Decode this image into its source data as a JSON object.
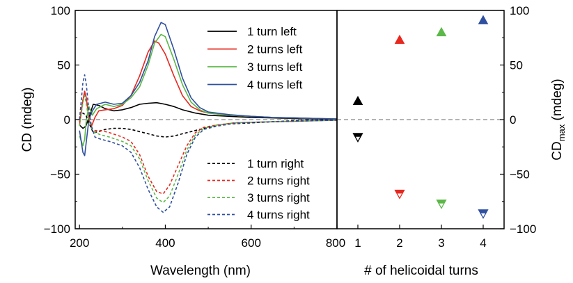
{
  "chart_data": [
    {
      "type": "line",
      "xlabel": "Wavelength (nm)",
      "ylabel": "CD (mdeg)",
      "xlim": [
        190,
        800
      ],
      "ylim": [
        -100,
        100
      ],
      "xticks": [
        "200",
        "400",
        "600",
        "800"
      ],
      "yticks": [
        "100",
        "50",
        "0",
        "−50",
        "−100"
      ],
      "reference_line": {
        "y": 0,
        "style": "dashed",
        "color": "#888888"
      },
      "legend_placement": "top-right and bottom-right",
      "series": [
        {
          "name": "1 turn left",
          "color": "#000000",
          "style": "solid",
          "points": [
            [
              200,
              -5
            ],
            [
              208,
              -8
            ],
            [
              215,
              -6
            ],
            [
              222,
              2
            ],
            [
              232,
              14
            ],
            [
              245,
              13
            ],
            [
              260,
              10
            ],
            [
              280,
              8
            ],
            [
              300,
              9
            ],
            [
              320,
              11
            ],
            [
              340,
              14
            ],
            [
              360,
              15
            ],
            [
              380,
              15.5
            ],
            [
              400,
              14
            ],
            [
              420,
              12
            ],
            [
              440,
              9
            ],
            [
              470,
              6
            ],
            [
              500,
              4
            ],
            [
              550,
              3
            ],
            [
              600,
              2
            ],
            [
              650,
              1.5
            ],
            [
              700,
              1
            ],
            [
              750,
              0.6
            ],
            [
              800,
              0.4
            ]
          ]
        },
        {
          "name": "2 turns left",
          "color": "#e8281e",
          "style": "solid",
          "points": [
            [
              200,
              -5
            ],
            [
              208,
              18
            ],
            [
              212,
              26
            ],
            [
              216,
              20
            ],
            [
              222,
              0
            ],
            [
              228,
              -6
            ],
            [
              236,
              2
            ],
            [
              245,
              8
            ],
            [
              260,
              9
            ],
            [
              280,
              10
            ],
            [
              300,
              13
            ],
            [
              320,
              22
            ],
            [
              340,
              40
            ],
            [
              360,
              62
            ],
            [
              375,
              72
            ],
            [
              385,
              70
            ],
            [
              400,
              60
            ],
            [
              420,
              40
            ],
            [
              440,
              22
            ],
            [
              460,
              12
            ],
            [
              480,
              8
            ],
            [
              500,
              6
            ],
            [
              550,
              4
            ],
            [
              600,
              3
            ],
            [
              650,
              2
            ],
            [
              700,
              1.5
            ],
            [
              750,
              1
            ],
            [
              800,
              0.6
            ]
          ]
        },
        {
          "name": "3 turns left",
          "color": "#5cb848",
          "style": "solid",
          "points": [
            [
              200,
              -15
            ],
            [
              208,
              -24
            ],
            [
              212,
              -18
            ],
            [
              216,
              0
            ],
            [
              222,
              12
            ],
            [
              230,
              4
            ],
            [
              240,
              10
            ],
            [
              260,
              14
            ],
            [
              280,
              12
            ],
            [
              300,
              14
            ],
            [
              320,
              20
            ],
            [
              340,
              30
            ],
            [
              360,
              50
            ],
            [
              375,
              70
            ],
            [
              390,
              78
            ],
            [
              400,
              76
            ],
            [
              420,
              55
            ],
            [
              440,
              32
            ],
            [
              460,
              16
            ],
            [
              480,
              9
            ],
            [
              500,
              6
            ],
            [
              550,
              4
            ],
            [
              600,
              3
            ],
            [
              650,
              2
            ],
            [
              700,
              1.5
            ],
            [
              750,
              1
            ],
            [
              800,
              0.6
            ]
          ]
        },
        {
          "name": "4 turns left",
          "color": "#2f4f9f",
          "style": "solid",
          "points": [
            [
              200,
              -10
            ],
            [
              208,
              -30
            ],
            [
              212,
              -33
            ],
            [
              216,
              -20
            ],
            [
              222,
              0
            ],
            [
              230,
              8
            ],
            [
              240,
              14
            ],
            [
              260,
              16
            ],
            [
              280,
              14
            ],
            [
              300,
              15
            ],
            [
              320,
              22
            ],
            [
              340,
              34
            ],
            [
              360,
              54
            ],
            [
              375,
              76
            ],
            [
              390,
              89
            ],
            [
              400,
              87
            ],
            [
              420,
              64
            ],
            [
              440,
              38
            ],
            [
              460,
              20
            ],
            [
              480,
              11
            ],
            [
              500,
              7
            ],
            [
              550,
              4.5
            ],
            [
              600,
              3
            ],
            [
              650,
              2
            ],
            [
              700,
              1.5
            ],
            [
              750,
              1
            ],
            [
              800,
              0.6
            ]
          ]
        },
        {
          "name": "1 turn right",
          "color": "#000000",
          "style": "dashed",
          "points": [
            [
              200,
              2
            ],
            [
              208,
              6
            ],
            [
              215,
              4
            ],
            [
              222,
              -3
            ],
            [
              232,
              -12
            ],
            [
              245,
              -11
            ],
            [
              260,
              -9
            ],
            [
              280,
              -8
            ],
            [
              300,
              -8
            ],
            [
              320,
              -9
            ],
            [
              340,
              -11
            ],
            [
              360,
              -13
            ],
            [
              380,
              -15
            ],
            [
              400,
              -16
            ],
            [
              420,
              -15
            ],
            [
              440,
              -13
            ],
            [
              470,
              -10
            ],
            [
              500,
              -7
            ],
            [
              550,
              -4
            ],
            [
              600,
              -3
            ],
            [
              650,
              -2
            ],
            [
              700,
              -1
            ],
            [
              750,
              -0.6
            ],
            [
              800,
              -0.4
            ]
          ]
        },
        {
          "name": "2 turns right",
          "color": "#e8281e",
          "style": "dashed",
          "points": [
            [
              200,
              -2
            ],
            [
              208,
              18
            ],
            [
              212,
              24
            ],
            [
              216,
              18
            ],
            [
              222,
              2
            ],
            [
              228,
              -8
            ],
            [
              236,
              -10
            ],
            [
              250,
              -10
            ],
            [
              270,
              -12
            ],
            [
              300,
              -16
            ],
            [
              320,
              -20
            ],
            [
              340,
              -32
            ],
            [
              360,
              -52
            ],
            [
              380,
              -66
            ],
            [
              395,
              -68
            ],
            [
              410,
              -60
            ],
            [
              430,
              -42
            ],
            [
              450,
              -24
            ],
            [
              470,
              -12
            ],
            [
              490,
              -7
            ],
            [
              520,
              -5
            ],
            [
              560,
              -3
            ],
            [
              600,
              -2.5
            ],
            [
              650,
              -2
            ],
            [
              700,
              -1.5
            ],
            [
              750,
              -1
            ],
            [
              800,
              -0.6
            ]
          ]
        },
        {
          "name": "3 turns right",
          "color": "#5cb848",
          "style": "dashed",
          "points": [
            [
              200,
              -6
            ],
            [
              208,
              16
            ],
            [
              212,
              22
            ],
            [
              216,
              14
            ],
            [
              222,
              0
            ],
            [
              228,
              -8
            ],
            [
              236,
              -12
            ],
            [
              250,
              -14
            ],
            [
              270,
              -16
            ],
            [
              300,
              -20
            ],
            [
              320,
              -24
            ],
            [
              340,
              -36
            ],
            [
              360,
              -56
            ],
            [
              380,
              -72
            ],
            [
              395,
              -76
            ],
            [
              410,
              -70
            ],
            [
              430,
              -50
            ],
            [
              450,
              -28
            ],
            [
              470,
              -14
            ],
            [
              490,
              -8
            ],
            [
              520,
              -5
            ],
            [
              560,
              -3
            ],
            [
              600,
              -2.5
            ],
            [
              650,
              -2
            ],
            [
              700,
              -1.5
            ],
            [
              750,
              -1
            ],
            [
              800,
              -0.6
            ]
          ]
        },
        {
          "name": "4 turns right",
          "color": "#2f4f9f",
          "style": "dashed",
          "points": [
            [
              200,
              0
            ],
            [
              208,
              34
            ],
            [
              212,
              41
            ],
            [
              216,
              32
            ],
            [
              222,
              8
            ],
            [
              228,
              -6
            ],
            [
              236,
              -16
            ],
            [
              250,
              -18
            ],
            [
              270,
              -20
            ],
            [
              300,
              -24
            ],
            [
              320,
              -30
            ],
            [
              340,
              -44
            ],
            [
              360,
              -64
            ],
            [
              380,
              -80
            ],
            [
              395,
              -85
            ],
            [
              410,
              -80
            ],
            [
              430,
              -58
            ],
            [
              450,
              -32
            ],
            [
              470,
              -16
            ],
            [
              490,
              -9
            ],
            [
              520,
              -6
            ],
            [
              560,
              -3.5
            ],
            [
              600,
              -2.5
            ],
            [
              650,
              -2
            ],
            [
              700,
              -1.5
            ],
            [
              750,
              -1
            ],
            [
              800,
              -0.6
            ]
          ]
        }
      ]
    },
    {
      "type": "scatter",
      "xlabel": "# of helicoidal turns",
      "ylabel_main": "CD",
      "ylabel_sub": "max",
      "ylabel_unit": " (mdeg)",
      "xlim": [
        0.5,
        4.5
      ],
      "ylim": [
        -100,
        100
      ],
      "xticks": [
        "1",
        "2",
        "3",
        "4"
      ],
      "yticks": [
        "100",
        "50",
        "0",
        "−50",
        "−100"
      ],
      "reference_line": {
        "y": 0,
        "style": "dashed",
        "color": "#888888"
      },
      "series": [
        {
          "marker": "triangle-up-filled",
          "points": [
            [
              1,
              17,
              "#000000"
            ],
            [
              2,
              73,
              "#e8281e"
            ],
            [
              3,
              80,
              "#5cb848"
            ],
            [
              4,
              91,
              "#2f4f9f"
            ]
          ]
        },
        {
          "marker": "triangle-down-half",
          "points": [
            [
              1,
              -16,
              "#000000"
            ],
            [
              2,
              -68,
              "#e8281e"
            ],
            [
              3,
              -77,
              "#5cb848"
            ],
            [
              4,
              -86,
              "#2f4f9f"
            ]
          ]
        }
      ]
    }
  ]
}
